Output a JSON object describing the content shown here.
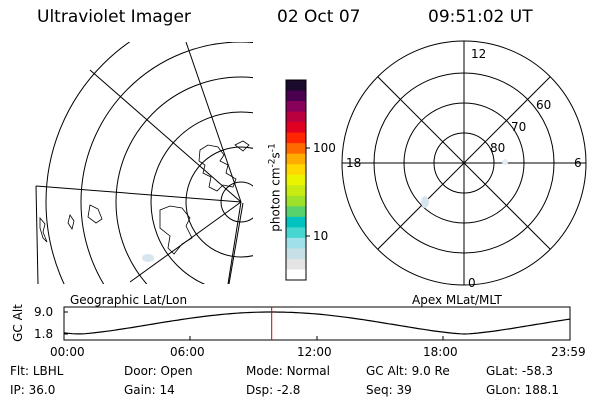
{
  "header": {
    "title": "Ultraviolet Imager",
    "date": "02 Oct 07",
    "time": "09:51:02 UT"
  },
  "left_map": {
    "label": "Geographic Lat/Lon"
  },
  "colorbar": {
    "unit_label": "photon cm",
    "unit_exp1": "-2",
    "unit_mid": "s",
    "unit_exp2": "-1",
    "scale": "log",
    "ticks": [
      "100",
      "10"
    ],
    "colors": [
      "#ffffff",
      "#e4e4e4",
      "#c7dfe6",
      "#9fe0ea",
      "#46d6cf",
      "#00c2bf",
      "#58d26d",
      "#9ee12b",
      "#c9ea12",
      "#eaf400",
      "#ffd800",
      "#ffac00",
      "#ff6a00",
      "#ff2600",
      "#e20022",
      "#bb0040",
      "#88005a",
      "#4a004f",
      "#1a0a2b"
    ]
  },
  "right_map": {
    "label": "Apex MLat/MLT",
    "mlt_labels": [
      "12",
      "18",
      "6",
      "0"
    ],
    "lat_labels": [
      "60",
      "70",
      "80"
    ]
  },
  "altitude_plot": {
    "ylabel": "GC Alt",
    "yticks": [
      "9.0",
      "1.8"
    ],
    "xticks": [
      "00:00",
      "06:00",
      "12:00",
      "18:00",
      "23:59"
    ],
    "curve_color": "#000000",
    "marker_color": "#cc0000",
    "current_time_hours": 9.85
  },
  "footer": {
    "row1": [
      {
        "key": "Flt:",
        "val": "LBHL"
      },
      {
        "key": "Door:",
        "val": "Open"
      },
      {
        "key": "Mode:",
        "val": "Normal"
      },
      {
        "key": "GC Alt:",
        "val": "9.0 Re"
      },
      {
        "key": "GLat:",
        "val": "-58.3"
      }
    ],
    "row2": [
      {
        "key": "IP:",
        "val": "36.0"
      },
      {
        "key": "Gain:",
        "val": "14"
      },
      {
        "key": "Dsp:",
        "val": "-2.8"
      },
      {
        "key": "Seq:",
        "val": "39"
      },
      {
        "key": "GLon:",
        "val": "188.1"
      }
    ]
  }
}
